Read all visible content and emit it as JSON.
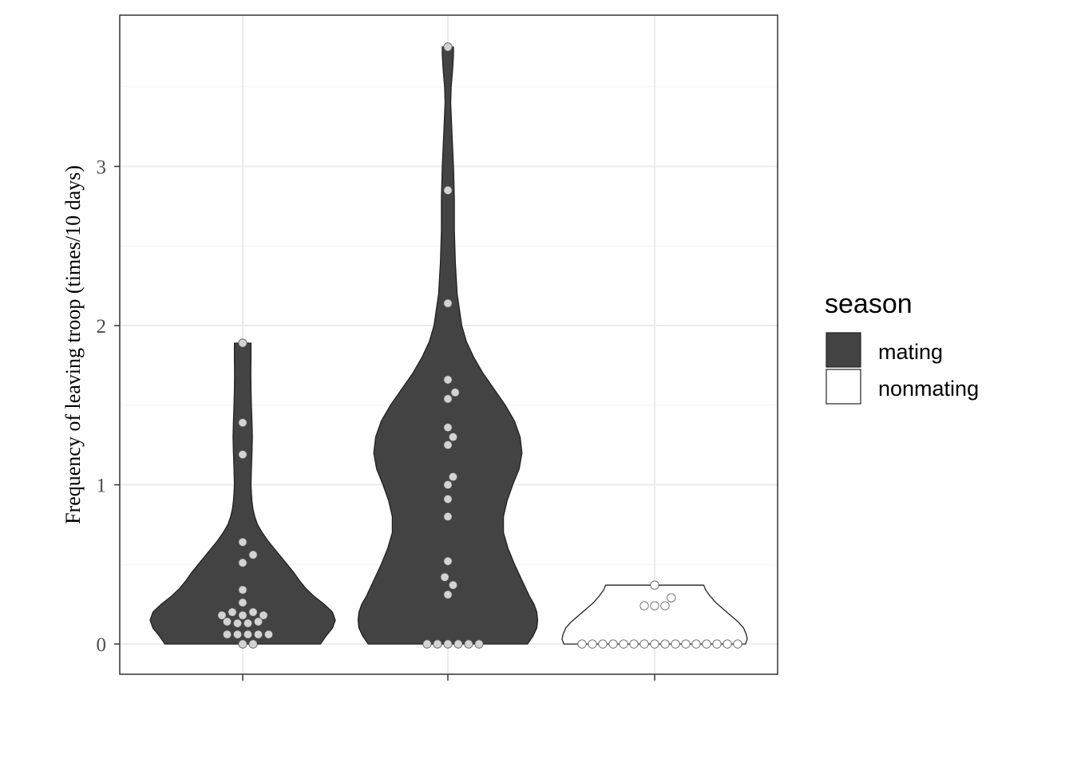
{
  "chart_data": {
    "type": "violin",
    "ylabel": "Frequency of leaving troop (times/10 days)",
    "ylim": [
      -0.19,
      3.95
    ],
    "yticks": [
      0,
      1,
      2,
      3
    ],
    "ytick_labels": [
      "0",
      "1",
      "2",
      "3"
    ],
    "grid": true,
    "legend": {
      "title": "season",
      "position": "right",
      "entries": [
        {
          "label": "mating",
          "fill": "#434343"
        },
        {
          "label": "nonmating",
          "fill": "#ffffff"
        }
      ]
    },
    "groups": [
      {
        "season": "mating",
        "fill": "#434343",
        "outline": "#222222",
        "points_fill": "#d3d3d3",
        "violin_max": 1.89,
        "density_profile": [
          [
            0.0,
            0.84
          ],
          [
            0.05,
            0.9
          ],
          [
            0.1,
            0.97
          ],
          [
            0.15,
            1.0
          ],
          [
            0.2,
            0.97
          ],
          [
            0.25,
            0.88
          ],
          [
            0.3,
            0.77
          ],
          [
            0.35,
            0.68
          ],
          [
            0.4,
            0.61
          ],
          [
            0.45,
            0.55
          ],
          [
            0.5,
            0.48
          ],
          [
            0.55,
            0.41
          ],
          [
            0.6,
            0.34
          ],
          [
            0.65,
            0.27
          ],
          [
            0.7,
            0.21
          ],
          [
            0.75,
            0.16
          ],
          [
            0.8,
            0.13
          ],
          [
            0.85,
            0.11
          ],
          [
            0.9,
            0.1
          ],
          [
            0.95,
            0.094
          ],
          [
            1.0,
            0.09
          ],
          [
            1.1,
            0.094
          ],
          [
            1.2,
            0.1
          ],
          [
            1.3,
            0.104
          ],
          [
            1.4,
            0.1
          ],
          [
            1.5,
            0.094
          ],
          [
            1.6,
            0.09
          ],
          [
            1.7,
            0.088
          ],
          [
            1.8,
            0.09
          ],
          [
            1.89,
            0.09
          ]
        ],
        "points": [
          {
            "y": 1.89,
            "k": 0
          },
          {
            "y": 1.39,
            "k": 0
          },
          {
            "y": 1.19,
            "k": 0
          },
          {
            "y": 0.64,
            "k": 0
          },
          {
            "y": 0.56,
            "k": 1
          },
          {
            "y": 0.51,
            "k": 0
          },
          {
            "y": 0.34,
            "k": 0
          },
          {
            "y": 0.26,
            "k": 0
          },
          {
            "y": 0.2,
            "k": -1
          },
          {
            "y": 0.2,
            "k": 1
          },
          {
            "y": 0.18,
            "k": -2
          },
          {
            "y": 0.18,
            "k": 0
          },
          {
            "y": 0.18,
            "k": 2
          },
          {
            "y": 0.14,
            "k": -1.5
          },
          {
            "y": 0.14,
            "k": 1.5
          },
          {
            "y": 0.13,
            "k": -0.5
          },
          {
            "y": 0.13,
            "k": 0.5
          },
          {
            "y": 0.06,
            "k": -1.5
          },
          {
            "y": 0.06,
            "k": -0.5
          },
          {
            "y": 0.06,
            "k": 0.5
          },
          {
            "y": 0.06,
            "k": 1.5
          },
          {
            "y": 0.06,
            "k": 2.5
          },
          {
            "y": 0.0,
            "k": 0
          },
          {
            "y": 0.0,
            "k": 1
          }
        ]
      },
      {
        "season": "mating",
        "fill": "#434343",
        "outline": "#222222",
        "points_fill": "#d3d3d3",
        "violin_max": 3.75,
        "density_profile": [
          [
            0.0,
            0.86
          ],
          [
            0.05,
            0.92
          ],
          [
            0.1,
            0.96
          ],
          [
            0.15,
            0.97
          ],
          [
            0.2,
            0.96
          ],
          [
            0.25,
            0.93
          ],
          [
            0.3,
            0.88
          ],
          [
            0.4,
            0.8
          ],
          [
            0.5,
            0.72
          ],
          [
            0.6,
            0.65
          ],
          [
            0.7,
            0.6
          ],
          [
            0.8,
            0.6
          ],
          [
            0.9,
            0.64
          ],
          [
            1.0,
            0.7
          ],
          [
            1.1,
            0.77
          ],
          [
            1.2,
            0.8
          ],
          [
            1.3,
            0.78
          ],
          [
            1.4,
            0.72
          ],
          [
            1.5,
            0.62
          ],
          [
            1.6,
            0.5
          ],
          [
            1.7,
            0.38
          ],
          [
            1.8,
            0.28
          ],
          [
            1.9,
            0.2
          ],
          [
            2.0,
            0.15
          ],
          [
            2.2,
            0.1
          ],
          [
            2.4,
            0.08
          ],
          [
            2.6,
            0.07
          ],
          [
            2.8,
            0.07
          ],
          [
            3.0,
            0.06
          ],
          [
            3.2,
            0.045
          ],
          [
            3.4,
            0.03
          ],
          [
            3.5,
            0.035
          ],
          [
            3.6,
            0.05
          ],
          [
            3.7,
            0.06
          ],
          [
            3.75,
            0.06
          ]
        ],
        "points": [
          {
            "y": 3.75,
            "k": 0
          },
          {
            "y": 2.85,
            "k": 0
          },
          {
            "y": 2.14,
            "k": 0
          },
          {
            "y": 1.66,
            "k": 0
          },
          {
            "y": 1.58,
            "k": 0.7
          },
          {
            "y": 1.54,
            "k": 0
          },
          {
            "y": 1.36,
            "k": 0
          },
          {
            "y": 1.3,
            "k": 0.5
          },
          {
            "y": 1.25,
            "k": 0
          },
          {
            "y": 1.05,
            "k": 0.5
          },
          {
            "y": 1.0,
            "k": 0
          },
          {
            "y": 0.91,
            "k": 0
          },
          {
            "y": 0.8,
            "k": 0
          },
          {
            "y": 0.52,
            "k": 0
          },
          {
            "y": 0.42,
            "k": -0.3
          },
          {
            "y": 0.37,
            "k": 0.5
          },
          {
            "y": 0.31,
            "k": 0
          },
          {
            "y": 0.0,
            "k": -2
          },
          {
            "y": 0.0,
            "k": -1
          },
          {
            "y": 0.0,
            "k": 0
          },
          {
            "y": 0.0,
            "k": 1
          },
          {
            "y": 0.0,
            "k": 2
          },
          {
            "y": 0.0,
            "k": 3
          }
        ]
      },
      {
        "season": "nonmating",
        "fill": "#ffffff",
        "outline": "#222222",
        "points_fill": "#ffffff",
        "violin_max": 0.37,
        "density_profile": [
          [
            0.0,
            0.98
          ],
          [
            0.03,
            1.0
          ],
          [
            0.06,
            0.99
          ],
          [
            0.1,
            0.96
          ],
          [
            0.14,
            0.9
          ],
          [
            0.18,
            0.82
          ],
          [
            0.22,
            0.74
          ],
          [
            0.26,
            0.66
          ],
          [
            0.3,
            0.6
          ],
          [
            0.34,
            0.55
          ],
          [
            0.37,
            0.53
          ]
        ],
        "points": [
          {
            "y": 0.37,
            "k": 0
          },
          {
            "y": 0.29,
            "k": 1.6
          },
          {
            "y": 0.24,
            "k": -1
          },
          {
            "y": 0.24,
            "k": 0
          },
          {
            "y": 0.24,
            "k": 1
          },
          {
            "y": 0.0,
            "k": -7
          },
          {
            "y": 0.0,
            "k": -6
          },
          {
            "y": 0.0,
            "k": -5
          },
          {
            "y": 0.0,
            "k": -4
          },
          {
            "y": 0.0,
            "k": -3
          },
          {
            "y": 0.0,
            "k": -2
          },
          {
            "y": 0.0,
            "k": -1
          },
          {
            "y": 0.0,
            "k": 0
          },
          {
            "y": 0.0,
            "k": 1
          },
          {
            "y": 0.0,
            "k": 2
          },
          {
            "y": 0.0,
            "k": 3
          },
          {
            "y": 0.0,
            "k": 4
          },
          {
            "y": 0.0,
            "k": 5
          },
          {
            "y": 0.0,
            "k": 6
          },
          {
            "y": 0.0,
            "k": 7
          },
          {
            "y": 0.0,
            "k": 8
          }
        ]
      }
    ]
  }
}
